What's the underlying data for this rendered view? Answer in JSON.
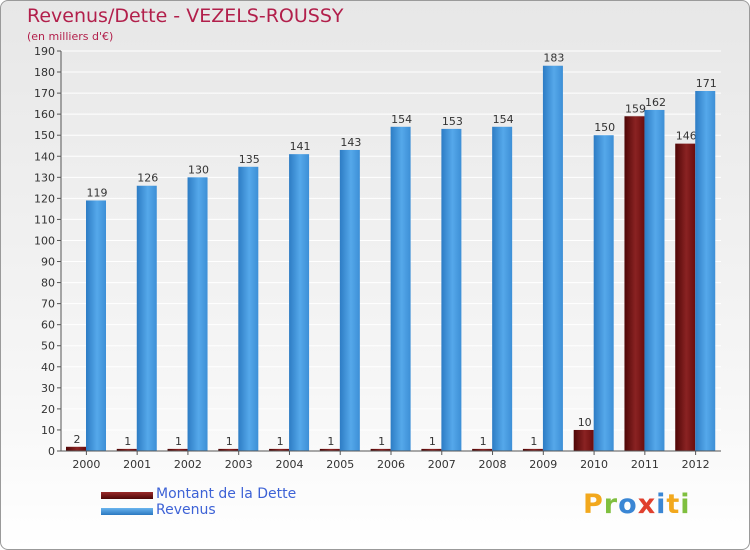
{
  "title": "Revenus/Dette - VEZELS-ROUSSY",
  "subtitle": "(en milliers d'€)",
  "logo_text": "Proxiti",
  "chart_data": {
    "type": "bar",
    "categories": [
      "2000",
      "2001",
      "2002",
      "2003",
      "2004",
      "2005",
      "2006",
      "2007",
      "2008",
      "2009",
      "2010",
      "2011",
      "2012"
    ],
    "series": [
      {
        "name": "Montant de la Dette",
        "color": "#6b0d0d",
        "values": [
          2,
          1,
          1,
          1,
          1,
          1,
          1,
          1,
          1,
          1,
          10,
          159,
          146
        ]
      },
      {
        "name": "Revenus",
        "color": "#3d8fd6",
        "values": [
          119,
          126,
          130,
          135,
          141,
          143,
          154,
          153,
          154,
          183,
          150,
          162,
          171
        ]
      }
    ],
    "ylim": [
      0,
      190
    ],
    "yticks": [
      0,
      10,
      20,
      30,
      40,
      50,
      60,
      70,
      80,
      90,
      100,
      110,
      120,
      130,
      140,
      150,
      160,
      170,
      180,
      190
    ],
    "grid": true,
    "legend": "bottom-left",
    "xlabel": "",
    "ylabel": ""
  },
  "colors": {
    "title": "#b21f4b",
    "debt": "#6b0d0d",
    "revenue": "#3d8fd6",
    "legend_text": "#3d62d6",
    "logo": [
      "#f2a81d",
      "#7fbf3f",
      "#3a86d4",
      "#e0402e",
      "#3a86d4",
      "#f2a81d",
      "#7fbf3f"
    ]
  }
}
